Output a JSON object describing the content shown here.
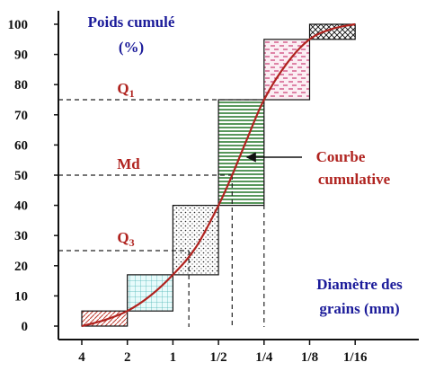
{
  "chart_data": {
    "type": "line",
    "title_line1": "Poids cumulé",
    "title_line2": "(%)",
    "xlabel_line1": "Diamètre des",
    "xlabel_line2": "grains (mm)",
    "x_ticks": [
      "4",
      "2",
      "1",
      "1/2",
      "1/4",
      "1/8",
      "1/16"
    ],
    "y_ticks": [
      "0",
      "10",
      "20",
      "30",
      "40",
      "50",
      "60",
      "70",
      "80",
      "90",
      "100"
    ],
    "y_highlight_tick": "50",
    "ylim": [
      0,
      100
    ],
    "phi_range": [
      -2,
      4
    ],
    "curve": {
      "name": "Courbe cumulative",
      "label_line1": "Courbe",
      "label_line2": "cumulative",
      "points": [
        {
          "phi": -2.0,
          "y": 0
        },
        {
          "phi": -1.5,
          "y": 2
        },
        {
          "phi": -1.0,
          "y": 5
        },
        {
          "phi": -0.5,
          "y": 10
        },
        {
          "phi": 0.0,
          "y": 17
        },
        {
          "phi": 0.5,
          "y": 26
        },
        {
          "phi": 1.0,
          "y": 40
        },
        {
          "phi": 1.3,
          "y": 50
        },
        {
          "phi": 1.6,
          "y": 61
        },
        {
          "phi": 2.0,
          "y": 75
        },
        {
          "phi": 2.5,
          "y": 87
        },
        {
          "phi": 3.0,
          "y": 95
        },
        {
          "phi": 3.5,
          "y": 98.5
        },
        {
          "phi": 4.0,
          "y": 100
        }
      ]
    },
    "histogram": [
      {
        "phi_from": -2,
        "phi_to": -1,
        "y_from": 0,
        "y_to": 5,
        "pattern": "diag-red"
      },
      {
        "phi_from": -1,
        "phi_to": 0,
        "y_from": 5,
        "y_to": 17,
        "pattern": "grid-cyan"
      },
      {
        "phi_from": 0,
        "phi_to": 1,
        "y_from": 17,
        "y_to": 40,
        "pattern": "dots"
      },
      {
        "phi_from": 1,
        "phi_to": 2,
        "y_from": 40,
        "y_to": 75,
        "pattern": "hlines-green"
      },
      {
        "phi_from": 2,
        "phi_to": 3,
        "y_from": 75,
        "y_to": 95,
        "pattern": "dashes-pink"
      },
      {
        "phi_from": 3,
        "phi_to": 4,
        "y_from": 95,
        "y_to": 100,
        "pattern": "crosshatch"
      }
    ],
    "quantiles": [
      {
        "name": "Q1",
        "label": "Q",
        "sub": "1",
        "y": 75,
        "phi": 2.0
      },
      {
        "name": "Md",
        "label": "Md",
        "sub": "",
        "y": 50,
        "phi": 1.3
      },
      {
        "name": "Q3",
        "label": "Q",
        "sub": "3",
        "y": 25,
        "phi": 0.35
      }
    ],
    "colors": {
      "axis": "#111111",
      "curve": "#b0231f",
      "title": "#1c1c9a",
      "labels": "#b0231f",
      "guide": "#222222",
      "hist_green": "#2e7d32",
      "hist_pink": "#c2185b",
      "hist_cyan": "#4fb6b6",
      "hist_red": "#c0392b"
    }
  }
}
